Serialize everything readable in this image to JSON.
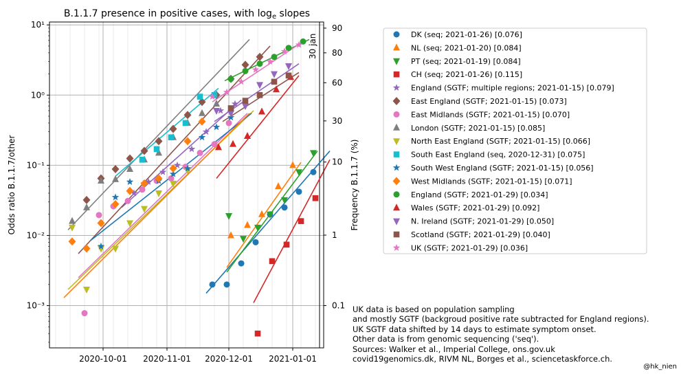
{
  "chart_data": {
    "type": "scatter",
    "title_prefix": "B.1.1.7 presence in positive cases, with log",
    "title_sub": "e",
    "title_suffix": " slopes",
    "ylabel": "Odds ratio B.1.1.7/other",
    "ylabel_right": "Frequency B.1.1.7 (%)",
    "y_scale": "log",
    "ylim": [
      0.00025,
      11
    ],
    "xlim": [
      "2020-09-05",
      "2021-01-16"
    ],
    "x_ticks": [
      "2020-10-01",
      "2020-11-01",
      "2020-12-01",
      "2021-01-01"
    ],
    "y_ticks": [
      0.001,
      0.01,
      0.1,
      1,
      10
    ],
    "y_tick_labels": [
      "10⁻³",
      "10⁻²",
      "10⁻¹",
      "10⁰",
      "10¹"
    ],
    "right_ticks": [
      0.1,
      1,
      10,
      30,
      60,
      80,
      90
    ],
    "right_tick_labels": [
      "0.1",
      "1",
      "10",
      "30",
      "60",
      "80",
      "90"
    ],
    "annotation": {
      "text": "30 jan",
      "x": "2021-01-13"
    },
    "grid": true,
    "legend_position": "right",
    "series": [
      {
        "name": "DK (seq; 2021-01-26) [0.076]",
        "color": "#1f77b4",
        "marker": "circle",
        "points": [
          [
            "2020-11-23",
            0.002
          ],
          [
            "2020-11-30",
            0.002
          ],
          [
            "2020-12-07",
            0.004
          ],
          [
            "2020-12-14",
            0.008
          ],
          [
            "2020-12-21",
            0.02
          ],
          [
            "2020-12-28",
            0.025
          ],
          [
            "2021-01-04",
            0.042
          ],
          [
            "2021-01-11",
            0.08
          ],
          [
            "2021-01-18",
            0.14
          ]
        ],
        "fit": [
          [
            "2020-11-20",
            0.0015
          ],
          [
            "2021-01-19",
            0.16
          ]
        ]
      },
      {
        "name": "NL (seq; 2021-01-20) [0.084]",
        "color": "#ff7f0e",
        "marker": "triangle-up",
        "points": [
          [
            "2020-12-02",
            0.01
          ],
          [
            "2020-12-10",
            0.014
          ],
          [
            "2020-12-17",
            0.02
          ],
          [
            "2020-12-25",
            0.05
          ],
          [
            "2021-01-01",
            0.1
          ]
        ],
        "fit": [
          [
            "2020-11-30",
            0.0035
          ],
          [
            "2021-01-05",
            0.11
          ]
        ]
      },
      {
        "name": "PT (seq; 2021-01-19) [0.084]",
        "color": "#2ca02c",
        "marker": "triangle-down",
        "points": [
          [
            "2020-12-01",
            0.019
          ],
          [
            "2020-12-08",
            0.009
          ],
          [
            "2020-12-15",
            0.013
          ],
          [
            "2020-12-21",
            0.02
          ],
          [
            "2020-12-28",
            0.032
          ],
          [
            "2021-01-04",
            0.08
          ],
          [
            "2021-01-11",
            0.15
          ]
        ],
        "fit": [
          [
            "2020-11-30",
            0.003
          ],
          [
            "2021-01-13",
            0.16
          ]
        ]
      },
      {
        "name": "CH (seq; 2021-01-26) [0.115]",
        "color": "#d62728",
        "marker": "square",
        "points": [
          [
            "2020-12-15",
            0.0004
          ],
          [
            "2020-12-22",
            0.0043
          ],
          [
            "2020-12-29",
            0.0074
          ],
          [
            "2021-01-05",
            0.016
          ],
          [
            "2021-01-12",
            0.034
          ],
          [
            "2021-01-19",
            0.11
          ]
        ],
        "fit": [
          [
            "2020-12-13",
            0.0011
          ],
          [
            "2021-01-19",
            0.12
          ]
        ]
      },
      {
        "name": "England (SGTF; multiple regions; 2021-01-15) [0.079]",
        "color": "#9467bd",
        "marker": "star",
        "points": [
          [
            "2020-10-16",
            0.04
          ],
          [
            "2020-10-23",
            0.058
          ],
          [
            "2020-10-30",
            0.08
          ],
          [
            "2020-11-06",
            0.1
          ],
          [
            "2020-11-13",
            0.17
          ],
          [
            "2020-11-20",
            0.3
          ],
          [
            "2020-11-27",
            0.6
          ],
          [
            "2020-12-04",
            0.75
          ]
        ],
        "fit": [
          [
            "2020-10-10",
            0.025
          ],
          [
            "2020-12-07",
            0.85
          ]
        ]
      },
      {
        "name": "East England (SGTF; 2021-01-15) [0.073]",
        "color": "#8c564b",
        "marker": "diamond",
        "points": [
          [
            "2020-09-23",
            0.032
          ],
          [
            "2020-09-30",
            0.065
          ],
          [
            "2020-10-07",
            0.088
          ],
          [
            "2020-10-14",
            0.125
          ],
          [
            "2020-10-21",
            0.16
          ],
          [
            "2020-10-28",
            0.22
          ],
          [
            "2020-11-04",
            0.33
          ],
          [
            "2020-11-11",
            0.52
          ],
          [
            "2020-11-18",
            0.8
          ],
          [
            "2020-11-25",
            1.0
          ],
          [
            "2020-12-02",
            1.7
          ],
          [
            "2020-12-09",
            2.7
          ],
          [
            "2020-12-16",
            3.5
          ]
        ],
        "fit": [
          [
            "2020-09-19",
            0.0055
          ],
          [
            "2020-12-21",
            5.0
          ]
        ]
      },
      {
        "name": "East Midlands (SGTF; 2021-01-15) [0.070]",
        "color": "#e377c2",
        "marker": "circle",
        "points": [
          [
            "2020-09-22",
            0.00078
          ],
          [
            "2020-09-29",
            0.0195
          ],
          [
            "2020-10-06",
            0.026
          ],
          [
            "2020-10-13",
            0.031
          ],
          [
            "2020-10-20",
            0.045
          ],
          [
            "2020-10-27",
            0.06
          ],
          [
            "2020-11-03",
            0.065
          ],
          [
            "2020-11-10",
            0.095
          ],
          [
            "2020-11-17",
            0.15
          ],
          [
            "2020-11-24",
            0.2
          ],
          [
            "2020-12-01",
            0.4
          ]
        ],
        "fit": [
          [
            "2020-09-19",
            0.0025
          ],
          [
            "2020-12-10",
            0.55
          ]
        ]
      },
      {
        "name": "London (SGTF; 2021-01-15) [0.085]",
        "color": "#7f7f7f",
        "marker": "triangle-up",
        "points": [
          [
            "2020-09-16",
            0.016
          ],
          [
            "2020-09-23",
            0.025
          ],
          [
            "2020-09-30",
            0.06
          ],
          [
            "2020-10-07",
            0.063
          ],
          [
            "2020-10-14",
            0.088
          ],
          [
            "2020-10-21",
            0.12
          ],
          [
            "2020-10-28",
            0.15
          ],
          [
            "2020-11-04",
            0.25
          ],
          [
            "2020-11-11",
            0.4
          ],
          [
            "2020-11-18",
            0.55
          ],
          [
            "2020-11-25",
            0.75
          ]
        ],
        "fit": [
          [
            "2020-09-14",
            0.012
          ],
          [
            "2020-12-11",
            6.2
          ]
        ]
      },
      {
        "name": "North East England (SGTF; 2021-01-15) [0.066]",
        "color": "#bcbd22",
        "marker": "triangle-down",
        "points": [
          [
            "2020-09-16",
            0.013
          ],
          [
            "2020-09-23",
            0.0017
          ],
          [
            "2020-09-30",
            0.0065
          ],
          [
            "2020-10-07",
            0.0065
          ],
          [
            "2020-10-14",
            0.015
          ],
          [
            "2020-10-21",
            0.024
          ],
          [
            "2020-10-28",
            0.04
          ],
          [
            "2020-11-04",
            0.055
          ],
          [
            "2020-11-11",
            0.085
          ]
        ],
        "fit": [
          [
            "2020-09-14",
            0.0017
          ],
          [
            "2020-12-13",
            0.6
          ]
        ]
      },
      {
        "name": "South East England (seq, 2020-12-31) [0.075]",
        "color": "#17becf",
        "marker": "square",
        "points": [
          [
            "2020-10-20",
            0.12
          ],
          [
            "2020-10-27",
            0.17
          ],
          [
            "2020-11-03",
            0.25
          ],
          [
            "2020-11-10",
            0.4
          ],
          [
            "2020-11-17",
            0.95
          ],
          [
            "2020-11-24",
            1.0
          ]
        ],
        "fit": [
          [
            "2020-10-07",
            0.07
          ],
          [
            "2020-11-26",
            1.25
          ]
        ]
      },
      {
        "name": "South West England (SGTF; 2021-01-15) [0.056]",
        "color": "#1f77b4",
        "marker": "star",
        "points": [
          [
            "2020-09-30",
            0.007
          ],
          [
            "2020-10-07",
            0.035
          ],
          [
            "2020-10-14",
            0.058
          ],
          [
            "2020-10-21",
            0.055
          ],
          [
            "2020-10-28",
            0.06
          ],
          [
            "2020-11-04",
            0.075
          ],
          [
            "2020-11-11",
            0.09
          ],
          [
            "2020-11-18",
            0.25
          ],
          [
            "2020-11-25",
            0.35
          ],
          [
            "2020-12-02",
            0.48
          ]
        ],
        "fit": [
          [
            "2020-09-25",
            0.0085
          ],
          [
            "2020-12-12",
            0.55
          ]
        ]
      },
      {
        "name": "West Midlands (SGTF; 2021-01-15) [0.071]",
        "color": "#ff7f0e",
        "marker": "diamond",
        "points": [
          [
            "2020-09-16",
            0.0082
          ],
          [
            "2020-09-23",
            0.0065
          ],
          [
            "2020-09-30",
            0.015
          ],
          [
            "2020-10-07",
            0.028
          ],
          [
            "2020-10-14",
            0.043
          ],
          [
            "2020-10-21",
            0.055
          ],
          [
            "2020-10-28",
            0.065
          ],
          [
            "2020-11-04",
            0.09
          ],
          [
            "2020-11-11",
            0.22
          ],
          [
            "2020-11-18",
            0.42
          ]
        ],
        "fit": [
          [
            "2020-09-12",
            0.0013
          ],
          [
            "2020-12-11",
            0.55
          ]
        ]
      },
      {
        "name": "England (SGTF; 2021-01-29) [0.034]",
        "color": "#2ca02c",
        "marker": "circle",
        "points": [
          [
            "2020-12-02",
            1.7
          ],
          [
            "2020-12-09",
            2.2
          ],
          [
            "2020-12-16",
            2.8
          ],
          [
            "2020-12-23",
            3.5
          ],
          [
            "2020-12-30",
            4.7
          ],
          [
            "2021-01-06",
            5.8
          ]
        ],
        "fit": [
          [
            "2020-11-29",
            1.6
          ],
          [
            "2021-01-09",
            6.2
          ]
        ]
      },
      {
        "name": "Wales (SGTF; 2021-01-29) [0.092]",
        "color": "#d62728",
        "marker": "triangle-up",
        "points": [
          [
            "2020-11-26",
            0.18
          ],
          [
            "2020-12-03",
            0.2
          ],
          [
            "2020-12-10",
            0.26
          ],
          [
            "2020-12-17",
            0.58
          ],
          [
            "2020-12-24",
            1.2
          ],
          [
            "2020-12-31",
            1.8
          ]
        ],
        "fit": [
          [
            "2020-11-25",
            0.065
          ],
          [
            "2021-01-04",
            1.9
          ]
        ]
      },
      {
        "name": "N. Ireland (SGTF; 2021-01-29) [0.050]",
        "color": "#9467bd",
        "marker": "triangle-down",
        "points": [
          [
            "2020-11-25",
            0.6
          ],
          [
            "2020-12-02",
            0.55
          ],
          [
            "2020-12-09",
            0.7
          ],
          [
            "2020-12-16",
            1.4
          ],
          [
            "2020-12-23",
            2.0
          ],
          [
            "2020-12-30",
            2.6
          ]
        ],
        "fit": [
          [
            "2020-11-24",
            0.42
          ],
          [
            "2021-01-04",
            2.8
          ]
        ]
      },
      {
        "name": "Scotland (SGTF; 2021-01-29) [0.040]",
        "color": "#8c564b",
        "marker": "square",
        "points": [
          [
            "2020-12-02",
            0.65
          ],
          [
            "2020-12-09",
            0.83
          ],
          [
            "2020-12-16",
            1.0
          ],
          [
            "2020-12-23",
            1.55
          ],
          [
            "2020-12-30",
            1.9
          ]
        ],
        "fit": [
          [
            "2020-11-28",
            0.42
          ],
          [
            "2021-01-04",
            2.1
          ]
        ]
      },
      {
        "name": "UK (SGTF; 2021-01-29) [0.036]",
        "color": "#e377c2",
        "marker": "star",
        "points": [
          [
            "2020-11-23",
            0.95
          ],
          [
            "2020-11-30",
            1.1
          ],
          [
            "2020-12-07",
            1.55
          ],
          [
            "2020-12-14",
            2.3
          ],
          [
            "2020-12-21",
            3.0
          ],
          [
            "2020-12-28",
            4.2
          ],
          [
            "2021-01-04",
            5.2
          ]
        ],
        "fit": [
          [
            "2020-11-23",
            0.8
          ],
          [
            "2021-01-06",
            5.8
          ]
        ]
      }
    ]
  },
  "notes": [
    "UK data is based on population sampling",
    "and mostly SGTF (backgroud positive rate subtracted for England regions).",
    "UK SGTF data shifted by 14 days to estimate symptom onset.",
    "Other data is from genomic sequencing ('seq').",
    "Sources: Walker et al., Imperial College, ons.gov.uk",
    "covid19genomics.dk, RIVM NL, Borges et al., sciencetaskforce.ch."
  ],
  "credit": "@hk_nien"
}
